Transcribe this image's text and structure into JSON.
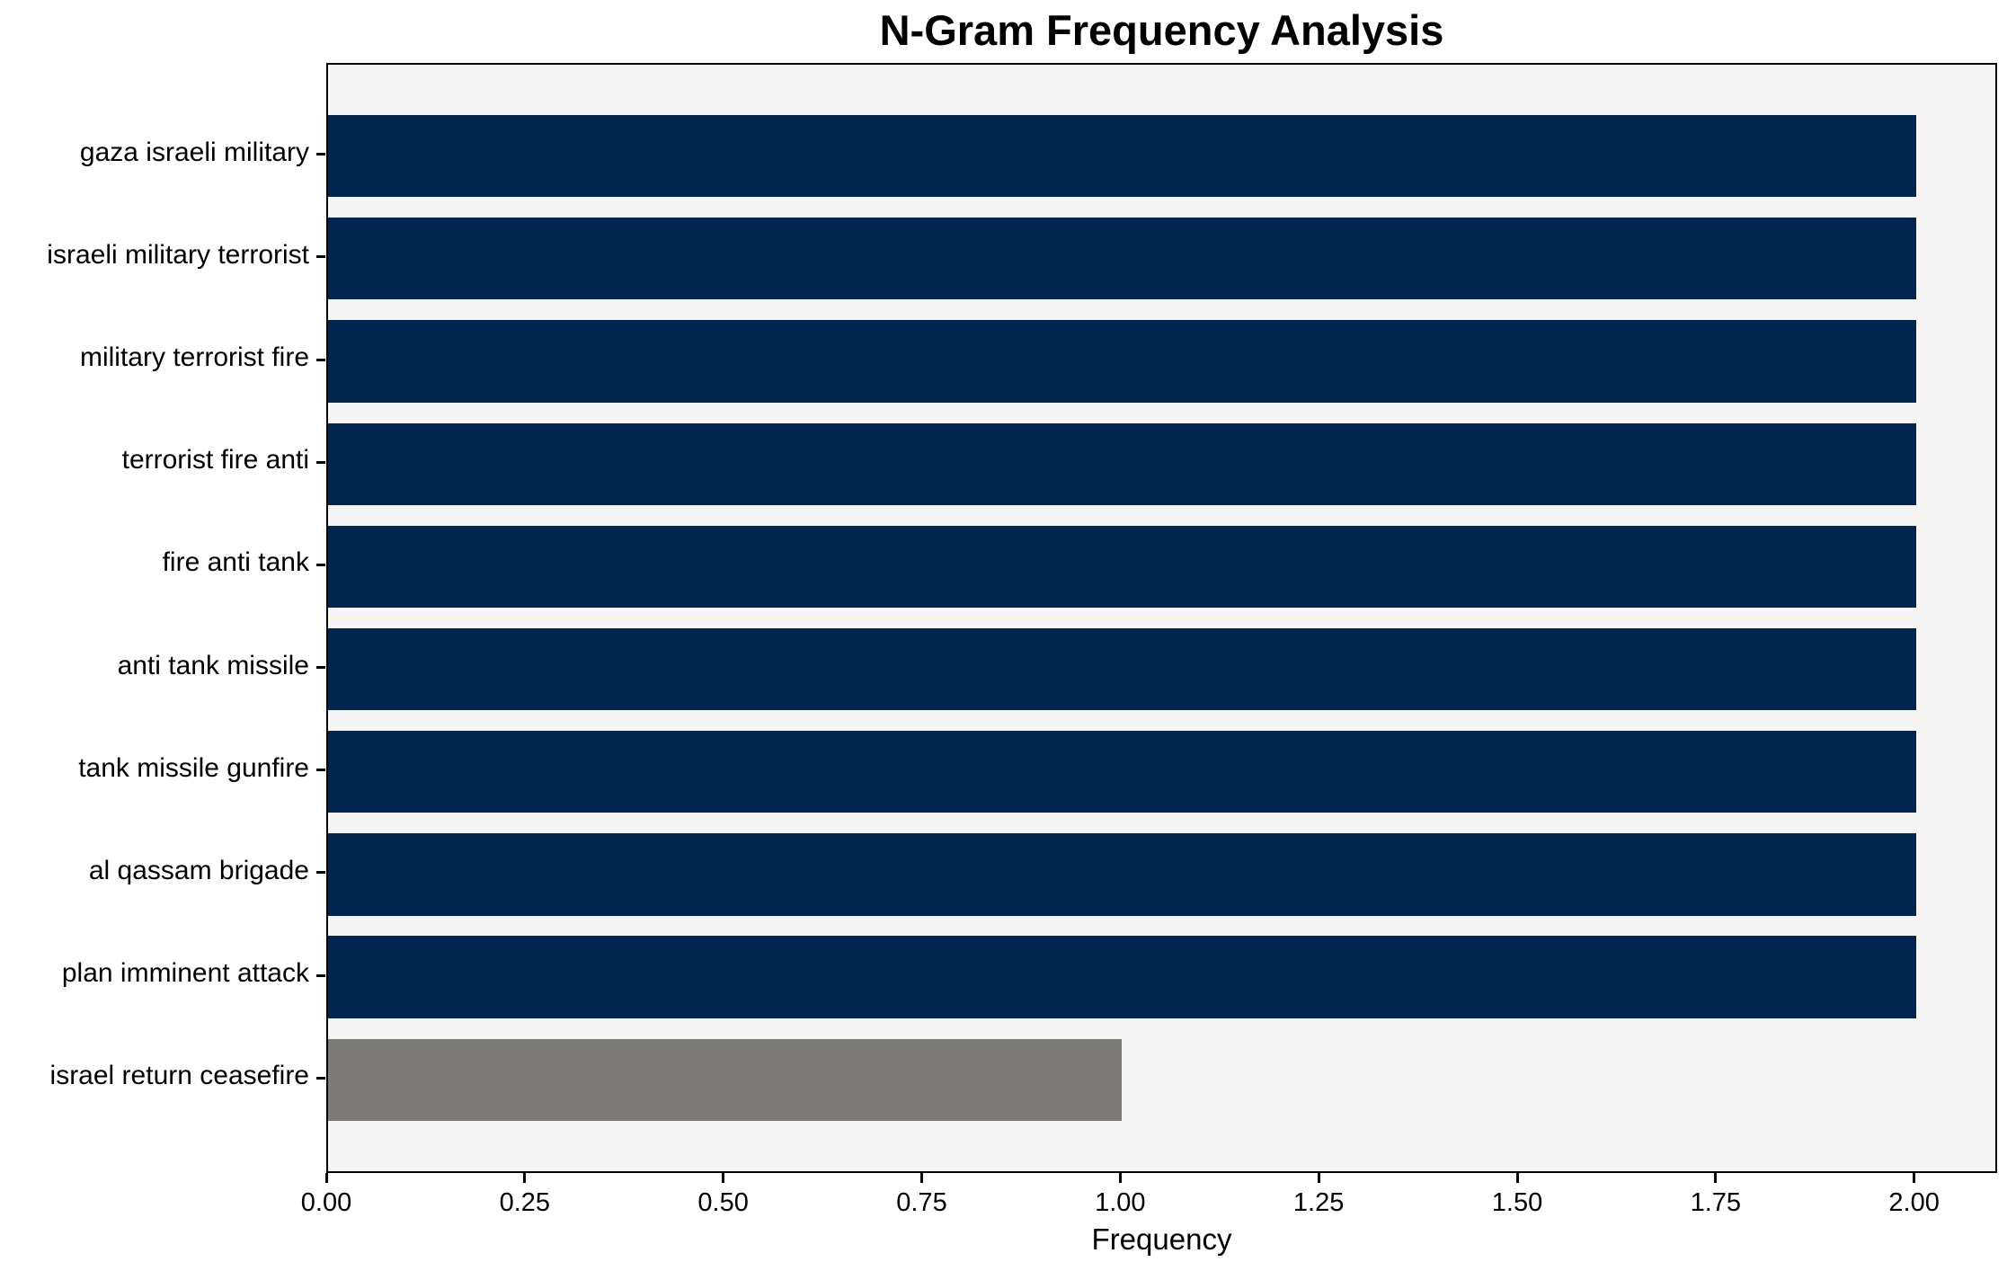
{
  "chart_data": {
    "type": "bar",
    "orientation": "horizontal",
    "title": "N-Gram Frequency Analysis",
    "xlabel": "Frequency",
    "ylabel": "",
    "categories": [
      "gaza israeli military",
      "israeli military terrorist",
      "military terrorist fire",
      "terrorist fire anti",
      "fire anti tank",
      "anti tank missile",
      "tank missile gunfire",
      "al qassam brigade",
      "plan imminent attack",
      "israel return ceasefire"
    ],
    "values": [
      2,
      2,
      2,
      2,
      2,
      2,
      2,
      2,
      2,
      1
    ],
    "bar_colors": [
      "#00254e",
      "#00254e",
      "#00254e",
      "#00254e",
      "#00254e",
      "#00254e",
      "#00254e",
      "#00254e",
      "#00254e",
      "#7c7b77"
    ],
    "xticks": [
      "0.00",
      "0.25",
      "0.50",
      "0.75",
      "1.00",
      "1.25",
      "1.50",
      "1.75",
      "2.00"
    ],
    "xlim": [
      0,
      2.1
    ],
    "grid": false,
    "legend": "none",
    "plot_background": "#f5f5f5",
    "figure_background": "#ffffff",
    "axis_color": "#000000"
  }
}
